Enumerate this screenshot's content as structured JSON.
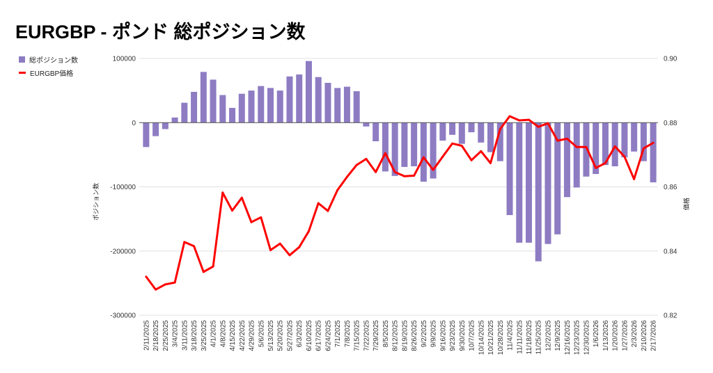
{
  "chart_data": {
    "type": "bar+line",
    "title": "EURGBP - ポンド 総ポジション数",
    "legend_placement": "top-left",
    "grid": true,
    "ylabel_left": "ポジション数",
    "ylabel_right": "価格",
    "ylim_left": [
      -300000,
      100000
    ],
    "ylim_right": [
      0.82,
      0.9
    ],
    "yticks_left": [
      "100000",
      "0",
      "-100000",
      "-200000",
      "-300000"
    ],
    "yticks_right": [
      "0.90",
      "0.88",
      "0.86",
      "0.84",
      "0.82"
    ],
    "categories": [
      "2/11/2025",
      "2/18/2025",
      "2/25/2025",
      "3/4/2025",
      "3/11/2025",
      "3/18/2025",
      "3/25/2025",
      "4/1/2025",
      "4/8/2025",
      "4/15/2025",
      "4/22/2025",
      "4/29/2025",
      "5/6/2025",
      "5/13/2025",
      "5/20/2025",
      "5/27/2025",
      "6/3/2025",
      "6/10/2025",
      "6/17/2025",
      "6/24/2025",
      "7/1/2025",
      "7/8/2025",
      "7/15/2025",
      "7/22/2025",
      "7/29/2025",
      "8/5/2025",
      "8/12/2025",
      "8/19/2025",
      "8/26/2025",
      "9/2/2025",
      "9/9/2025",
      "9/16/2025",
      "9/23/2025",
      "9/30/2025",
      "10/7/2025",
      "10/14/2025",
      "10/21/2025",
      "10/28/2025",
      "11/4/2025",
      "11/11/2025",
      "11/18/2025",
      "11/25/2025",
      "12/2/2025",
      "12/9/2025",
      "12/16/2025",
      "12/23/2025",
      "12/30/2025",
      "1/6/2026",
      "1/13/2026",
      "1/20/2026",
      "1/27/2026",
      "2/3/2026",
      "2/10/2026",
      "2/17/2026"
    ],
    "series": [
      {
        "name": "総ポジション数",
        "type": "bar",
        "axis": "left",
        "color": "#8e7cc3",
        "values": [
          -38000,
          -21000,
          -10000,
          8000,
          31000,
          48000,
          79000,
          67000,
          43000,
          23000,
          45000,
          50000,
          57000,
          54000,
          50000,
          72000,
          75000,
          96000,
          71000,
          62000,
          54000,
          56000,
          49000,
          -6000,
          -29000,
          -76000,
          -83000,
          -69000,
          -68000,
          -92000,
          -87000,
          -28000,
          -19000,
          -33000,
          -15000,
          -31000,
          -46000,
          -60000,
          -144000,
          -187000,
          -187000,
          -216000,
          -189000,
          -174000,
          -116000,
          -101000,
          -84000,
          -80000,
          -66000,
          -68000,
          -54000,
          -45000,
          -60000,
          -93000
        ]
      },
      {
        "name": "EURGBP価格",
        "type": "line",
        "axis": "right",
        "color": "#ff0000",
        "values": [
          0.832,
          0.828,
          0.8296,
          0.8302,
          0.8428,
          0.8415,
          0.8335,
          0.8352,
          0.8582,
          0.8526,
          0.8566,
          0.849,
          0.8505,
          0.8403,
          0.8423,
          0.8387,
          0.8412,
          0.8462,
          0.8549,
          0.8525,
          0.859,
          0.8631,
          0.8668,
          0.8687,
          0.8646,
          0.8705,
          0.8646,
          0.8633,
          0.8635,
          0.8692,
          0.8653,
          0.8694,
          0.8735,
          0.8728,
          0.8683,
          0.8711,
          0.8674,
          0.878,
          0.882,
          0.8807,
          0.8809,
          0.8787,
          0.8798,
          0.8744,
          0.875,
          0.8724,
          0.8724,
          0.8659,
          0.8674,
          0.8726,
          0.8694,
          0.8624,
          0.872,
          0.8737
        ]
      }
    ]
  }
}
